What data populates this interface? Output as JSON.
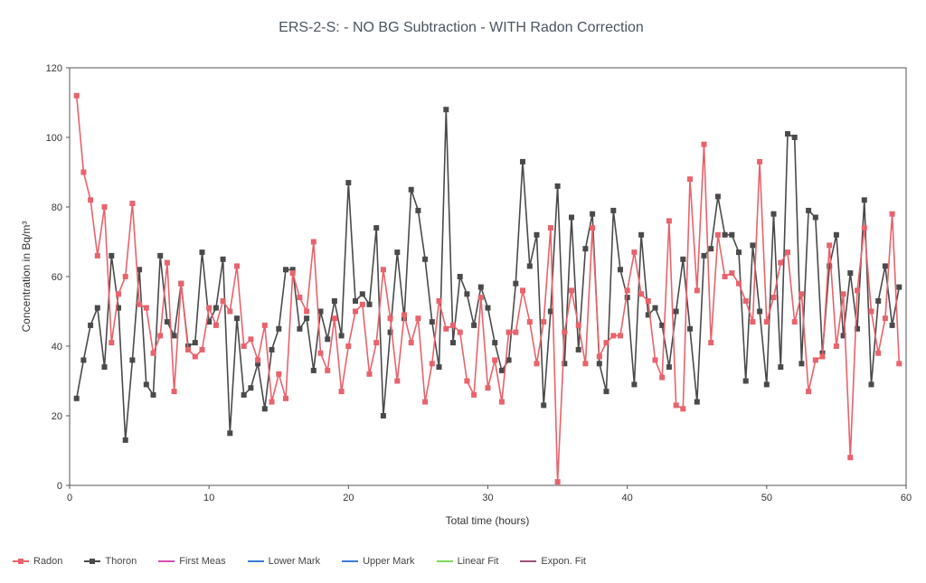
{
  "chart_data": {
    "type": "line",
    "title": "ERS-2-S:  - NO BG Subtraction - WITH Radon Correction",
    "xlabel": "Total time (hours)",
    "ylabel": "Concentration in Bq/m³",
    "xlim": [
      0,
      60
    ],
    "ylim": [
      0,
      120
    ],
    "xticks": [
      0,
      10,
      20,
      30,
      40,
      50,
      60
    ],
    "yticks": [
      0,
      20,
      40,
      60,
      80,
      100,
      120
    ],
    "grid": false,
    "legend_position": "bottom",
    "series": [
      {
        "name": "Radon",
        "color": "#e8636b",
        "marker": "square",
        "x": [
          0.5,
          1.0,
          1.5,
          2.0,
          2.5,
          3.0,
          3.5,
          4.0,
          4.5,
          5.0,
          5.5,
          6.0,
          6.5,
          7.0,
          7.5,
          8.0,
          8.5,
          9.0,
          9.5,
          10.0,
          10.5,
          11.0,
          11.5,
          12.0,
          12.5,
          13.0,
          13.5,
          14.0,
          14.5,
          15.0,
          15.5,
          16.0,
          16.5,
          17.0,
          17.5,
          18.0,
          18.5,
          19.0,
          19.5,
          20.0,
          20.5,
          21.0,
          21.5,
          22.0,
          22.5,
          23.0,
          23.5,
          24.0,
          24.5,
          25.0,
          25.5,
          26.0,
          26.5,
          27.0,
          27.5,
          28.0,
          28.5,
          29.0,
          29.5,
          30.0,
          30.5,
          31.0,
          31.5,
          32.0,
          32.5,
          33.0,
          33.5,
          34.0,
          34.5,
          35.0,
          35.5,
          36.0,
          36.5,
          37.0,
          37.5,
          38.0,
          38.5,
          39.0,
          39.5,
          40.0,
          40.5,
          41.0,
          41.5,
          42.0,
          42.5,
          43.0,
          43.5,
          44.0,
          44.5,
          45.0,
          45.5,
          46.0,
          46.5,
          47.0,
          47.5,
          48.0,
          48.5,
          49.0,
          49.5,
          50.0,
          50.5,
          51.0,
          51.5,
          52.0,
          52.5,
          53.0,
          53.5,
          54.0,
          54.5,
          55.0,
          55.5,
          56.0,
          56.5,
          57.0,
          57.5,
          58.0,
          58.5,
          59.0,
          59.5
        ],
        "values": [
          112,
          90,
          82,
          66,
          80,
          41,
          55,
          60,
          81,
          52,
          51,
          38,
          43,
          64,
          27,
          58,
          39,
          37,
          39,
          51,
          46,
          53,
          50,
          63,
          40,
          42,
          36,
          46,
          24,
          32,
          25,
          61,
          54,
          50,
          70,
          38,
          33,
          48,
          27,
          40,
          50,
          52,
          32,
          41,
          62,
          48,
          30,
          49,
          41,
          48,
          24,
          35,
          53,
          45,
          46,
          44,
          30,
          26,
          54,
          28,
          36,
          24,
          44,
          44,
          56,
          47,
          35,
          47,
          74,
          1,
          44,
          56,
          46,
          35,
          74,
          37,
          41,
          43,
          43,
          56,
          67,
          55,
          53,
          36,
          31,
          76,
          23,
          22,
          88,
          56,
          98,
          41,
          72,
          60,
          61,
          58,
          53,
          47,
          93,
          47,
          54,
          64,
          67,
          47,
          55,
          27,
          36,
          37,
          69,
          40,
          55,
          8,
          56,
          74,
          50,
          38,
          48,
          78,
          35
        ]
      },
      {
        "name": "Thoron",
        "color": "#4a4a4a",
        "marker": "square",
        "x": [
          0.5,
          1.0,
          1.5,
          2.0,
          2.5,
          3.0,
          3.5,
          4.0,
          4.5,
          5.0,
          5.5,
          6.0,
          6.5,
          7.0,
          7.5,
          8.0,
          8.5,
          9.0,
          9.5,
          10.0,
          10.5,
          11.0,
          11.5,
          12.0,
          12.5,
          13.0,
          13.5,
          14.0,
          14.5,
          15.0,
          15.5,
          16.0,
          16.5,
          17.0,
          17.5,
          18.0,
          18.5,
          19.0,
          19.5,
          20.0,
          20.5,
          21.0,
          21.5,
          22.0,
          22.5,
          23.0,
          23.5,
          24.0,
          24.5,
          25.0,
          25.5,
          26.0,
          26.5,
          27.0,
          27.5,
          28.0,
          28.5,
          29.0,
          29.5,
          30.0,
          30.5,
          31.0,
          31.5,
          32.0,
          32.5,
          33.0,
          33.5,
          34.0,
          34.5,
          35.0,
          35.5,
          36.0,
          36.5,
          37.0,
          37.5,
          38.0,
          38.5,
          39.0,
          39.5,
          40.0,
          40.5,
          41.0,
          41.5,
          42.0,
          42.5,
          43.0,
          43.5,
          44.0,
          44.5,
          45.0,
          45.5,
          46.0,
          46.5,
          47.0,
          47.5,
          48.0,
          48.5,
          49.0,
          49.5,
          50.0,
          50.5,
          51.0,
          51.5,
          52.0,
          52.5,
          53.0,
          53.5,
          54.0,
          54.5,
          55.0,
          55.5,
          56.0,
          56.5,
          57.0,
          57.5,
          58.0,
          58.5,
          59.0,
          59.5
        ],
        "values": [
          25,
          36,
          46,
          51,
          34,
          66,
          51,
          13,
          36,
          62,
          29,
          26,
          66,
          47,
          43,
          58,
          40,
          41,
          67,
          47,
          51,
          65,
          15,
          48,
          26,
          28,
          35,
          22,
          39,
          45,
          62,
          62,
          45,
          48,
          33,
          50,
          42,
          53,
          43,
          87,
          53,
          55,
          52,
          74,
          20,
          44,
          67,
          48,
          85,
          79,
          65,
          47,
          34,
          108,
          41,
          60,
          55,
          46,
          57,
          51,
          41,
          33,
          36,
          58,
          93,
          63,
          72,
          23,
          50,
          86,
          35,
          77,
          39,
          68,
          78,
          35,
          27,
          79,
          62,
          54,
          29,
          72,
          49,
          51,
          46,
          34,
          50,
          65,
          45,
          24,
          66,
          68,
          83,
          72,
          72,
          67,
          30,
          69,
          50,
          29,
          78,
          34,
          101,
          100,
          35,
          79,
          77,
          38,
          63,
          72,
          43,
          61,
          45,
          82,
          29,
          53,
          63,
          46,
          57
        ]
      }
    ]
  },
  "legend": [
    {
      "label": "Radon",
      "color": "#e8636b",
      "marker": true
    },
    {
      "label": "Thoron",
      "color": "#4a4a4a",
      "marker": true
    },
    {
      "label": "First Meas",
      "color": "#d64fb1",
      "marker": false
    },
    {
      "label": "Lower Mark",
      "color": "#3a7bd5",
      "marker": false
    },
    {
      "label": "Upper Mark",
      "color": "#3a7bd5",
      "marker": false
    },
    {
      "label": "Linear Fit",
      "color": "#7ed957",
      "marker": false
    },
    {
      "label": "Expon. Fit",
      "color": "#a0527a",
      "marker": false
    }
  ]
}
